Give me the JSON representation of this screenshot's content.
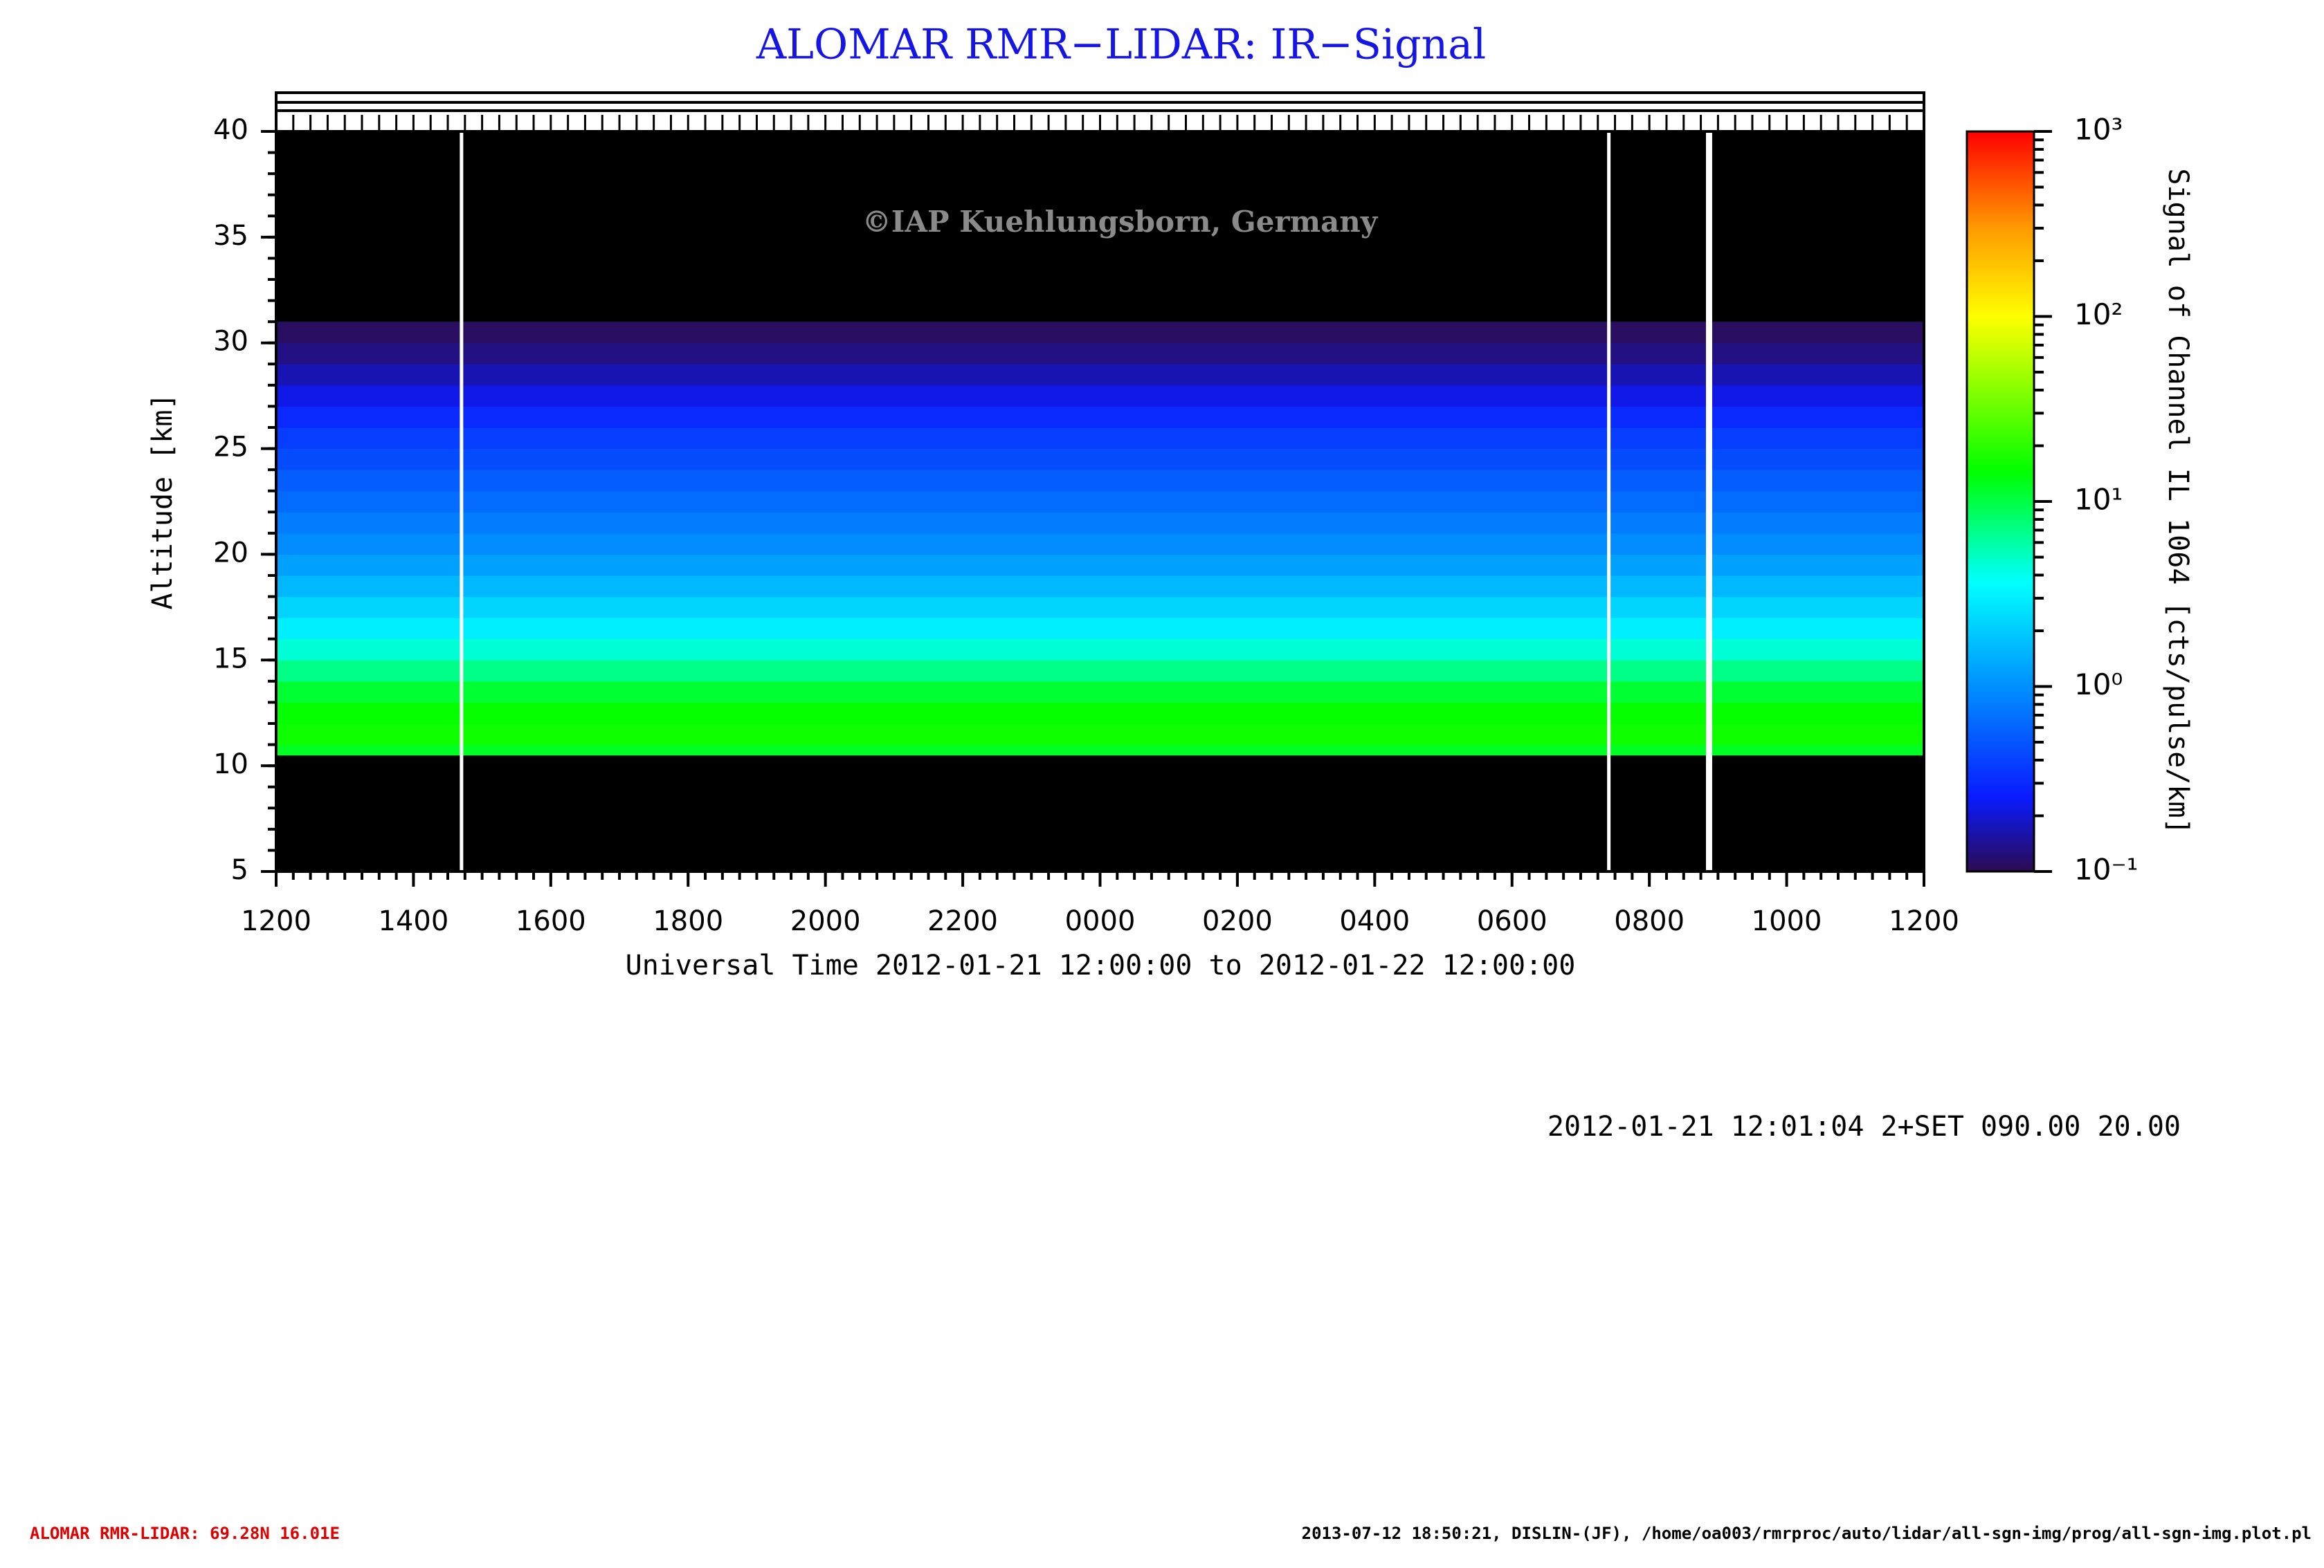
{
  "chart_data": {
    "type": "heatmap",
    "title": "ALOMAR RMR−LIDAR: IR−Signal",
    "watermark": "©IAP Kuehlungsborn, Germany",
    "x_label": "Universal Time 2012-01-21 12:00:00 to 2012-01-22 12:00:00",
    "y_label": "Altitude [km]",
    "colorbar_label": "Signal of Channel IL 1064 [cts/pulse/km]",
    "xlim": [
      0,
      24
    ],
    "xticks": [
      {
        "value": 0,
        "label": "1200"
      },
      {
        "value": 2,
        "label": "1400"
      },
      {
        "value": 4,
        "label": "1600"
      },
      {
        "value": 6,
        "label": "1800"
      },
      {
        "value": 8,
        "label": "2000"
      },
      {
        "value": 10,
        "label": "2200"
      },
      {
        "value": 12,
        "label": "0000"
      },
      {
        "value": 14,
        "label": "0200"
      },
      {
        "value": 16,
        "label": "0400"
      },
      {
        "value": 18,
        "label": "0600"
      },
      {
        "value": 20,
        "label": "0800"
      },
      {
        "value": 22,
        "label": "1000"
      },
      {
        "value": 24,
        "label": "1200"
      }
    ],
    "ylim": [
      5,
      40
    ],
    "yticks": [
      5,
      10,
      15,
      20,
      25,
      30,
      35,
      40
    ],
    "colorbar_lim": [
      0.1,
      1000
    ],
    "colorbar_ticks": [
      {
        "value": 0.1,
        "label": "10⁻¹"
      },
      {
        "value": 1,
        "label": "10⁰"
      },
      {
        "value": 10,
        "label": "10¹"
      },
      {
        "value": 100,
        "label": "10²"
      },
      {
        "value": 1000,
        "label": "10³"
      }
    ],
    "log_scale_color": true,
    "colormap": {
      "positions": [
        0,
        0.1,
        0.25,
        0.39,
        0.54,
        0.75,
        0.87,
        1
      ],
      "colors": [
        "#2b0b4f",
        "#0a1aff",
        "#0090ff",
        "#00ffff",
        "#00ff00",
        "#ffff00",
        "#ff9900",
        "#ff0000"
      ]
    },
    "altitude_bins": [
      10.5,
      11,
      12,
      13,
      14,
      15,
      16,
      17,
      18,
      19,
      20,
      21,
      22,
      23,
      24,
      25,
      26,
      27,
      28,
      29,
      30,
      31
    ],
    "values": [
      12,
      16,
      15,
      11,
      7,
      4.5,
      3,
      2.2,
      1.6,
      1.2,
      0.95,
      0.8,
      0.65,
      0.55,
      0.45,
      0.38,
      0.3,
      0.22,
      0.17,
      0.13,
      0.11
    ],
    "data_gaps": [
      2.7,
      19.41,
      20.87
    ],
    "info": "2012-01-21 12:01:04 2+SET 090.00 20.00",
    "footer_left": "ALOMAR RMR-LIDAR: 69.28N 16.01E",
    "footer_right": "2013-07-12 18:50:21, DISLIN-(JF), /home/oa003/rmrproc/auto/lidar/all-sgn-img/prog/all-sgn-img.plot.pl"
  }
}
